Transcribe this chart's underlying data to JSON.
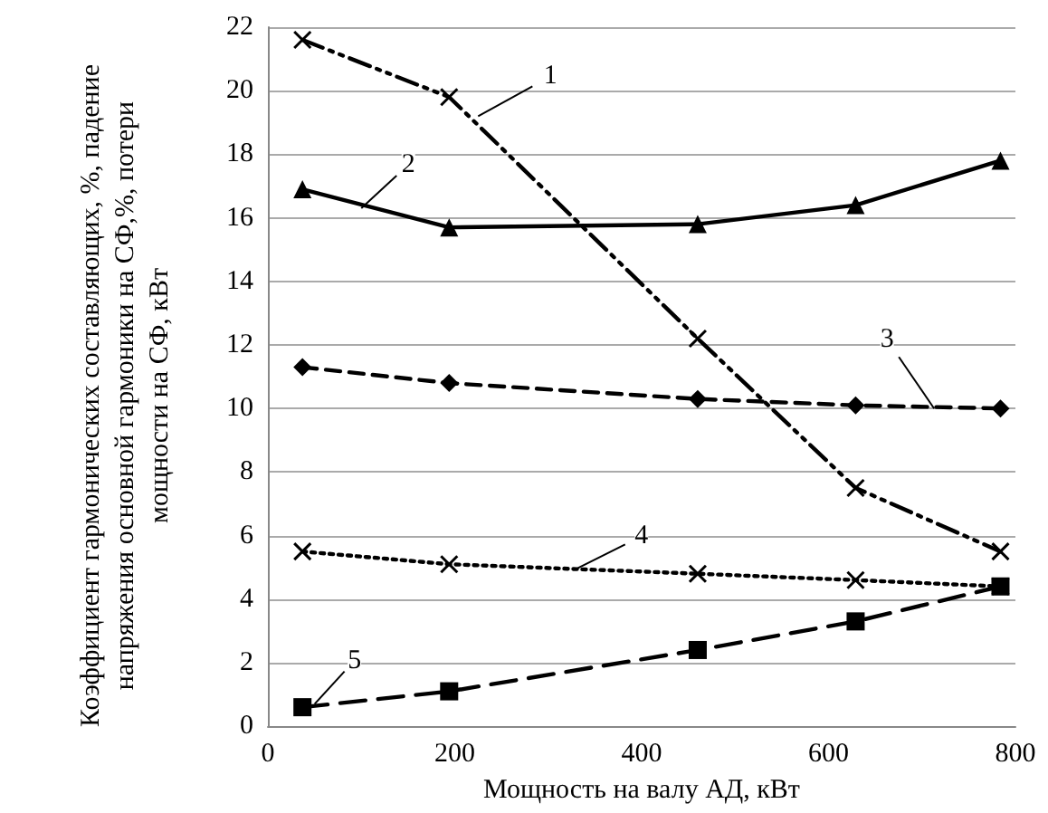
{
  "chart_data": {
    "type": "line",
    "xlabel": "Мощность на валу АД, кВт",
    "ylabel": "Коэффициент гармонических составляющих, %, падение напряжения основной гармоники на СФ,%, потери мощности на СФ, кВт",
    "x": [
      37,
      194,
      460,
      629,
      784
    ],
    "xlim": [
      0,
      800
    ],
    "xticks": [
      0,
      200,
      400,
      600,
      800
    ],
    "ylim": [
      0,
      22
    ],
    "yticks": [
      0,
      2,
      4,
      6,
      8,
      10,
      12,
      14,
      16,
      18,
      20,
      22
    ],
    "grid": "y",
    "series": [
      {
        "color": "#000000",
        "marker": "cross",
        "line_style": "dashdotdot",
        "values": [
          21.6,
          19.8,
          12.2,
          7.5,
          5.5
        ]
      },
      {
        "color": "#000000",
        "marker": "triangle",
        "line_style": "solid",
        "values": [
          16.9,
          15.7,
          15.8,
          16.4,
          17.8
        ]
      },
      {
        "color": "#000000",
        "marker": "diamond",
        "line_style": "dashed",
        "values": [
          11.3,
          10.8,
          10.3,
          10.1,
          10.0
        ]
      },
      {
        "color": "#000000",
        "marker": "cross",
        "line_style": "dotted",
        "values": [
          5.5,
          5.1,
          4.8,
          4.6,
          4.4
        ]
      },
      {
        "color": "#000000",
        "marker": "square",
        "line_style": "longdash",
        "values": [
          0.6,
          1.1,
          2.4,
          3.3,
          4.4
        ]
      }
    ],
    "annotations": [
      {
        "text": "1",
        "x": 225,
        "y": 19.2
      },
      {
        "text": "2",
        "x": 100,
        "y": 16.3
      },
      {
        "text": "3",
        "x": 713,
        "y": 10.0
      },
      {
        "text": "4",
        "x": 330,
        "y": 4.95
      },
      {
        "text": "5",
        "x": 50,
        "y": 0.7
      }
    ]
  }
}
